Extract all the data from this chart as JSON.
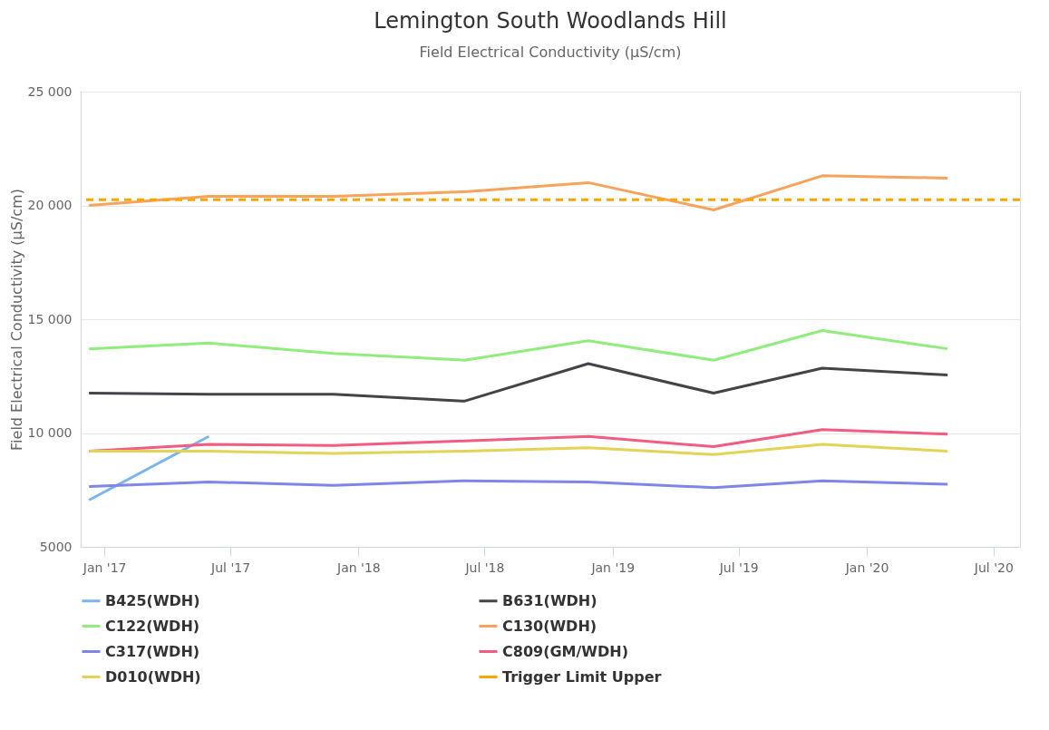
{
  "chart_data": {
    "type": "line",
    "title": "Lemington South Woodlands Hill",
    "subtitle": "Field Electrical Conductivity (µS/cm)",
    "ylabel": "Field Electrical Conductivity (µS/cm)",
    "x": [
      "2016-12-10",
      "2017-05-31",
      "2017-11-26",
      "2018-06-02",
      "2018-11-27",
      "2019-05-26",
      "2019-10-29",
      "2020-04-26"
    ],
    "series": [
      {
        "name": "B425(WDH)",
        "color": "#7cb5ec",
        "values": [
          7050,
          9850,
          null,
          null,
          null,
          null,
          null,
          null
        ]
      },
      {
        "name": "B631(WDH)",
        "color": "#434348",
        "values": [
          11750,
          11700,
          11700,
          11400,
          13050,
          11750,
          12850,
          12550
        ]
      },
      {
        "name": "C122(WDH)",
        "color": "#90ed7d",
        "values": [
          13700,
          13950,
          13500,
          13200,
          14050,
          13200,
          14500,
          13700
        ]
      },
      {
        "name": "C130(WDH)",
        "color": "#f7a35c",
        "values": [
          20000,
          20400,
          20400,
          20600,
          21000,
          19800,
          21300,
          21200
        ]
      },
      {
        "name": "C317(WDH)",
        "color": "#8085e9",
        "values": [
          7650,
          7850,
          7700,
          7900,
          7850,
          7600,
          7900,
          7750
        ]
      },
      {
        "name": "C809(GM/WDH)",
        "color": "#f15c80",
        "values": [
          9200,
          9500,
          9450,
          9650,
          9850,
          9400,
          10150,
          9950
        ]
      },
      {
        "name": "D010(WDH)",
        "color": "#e4d354",
        "values": [
          9200,
          9200,
          9100,
          9200,
          9350,
          9050,
          9500,
          9200
        ]
      }
    ],
    "ref_lines": [
      {
        "axis": "y",
        "value": 20250,
        "label": "Trigger Limit Upper",
        "color": "#ffa500",
        "line_style": "dashed"
      }
    ],
    "xlim": [
      "2016-11-28",
      "2020-08-08"
    ],
    "xticks": [
      {
        "value": "2017-01-01",
        "label": "Jan '17"
      },
      {
        "value": "2017-07-01",
        "label": "Jul '17"
      },
      {
        "value": "2018-01-01",
        "label": "Jan '18"
      },
      {
        "value": "2018-07-01",
        "label": "Jul '18"
      },
      {
        "value": "2019-01-01",
        "label": "Jan '19"
      },
      {
        "value": "2019-07-01",
        "label": "Jul '19"
      },
      {
        "value": "2020-01-01",
        "label": "Jan '20"
      },
      {
        "value": "2020-07-01",
        "label": "Jul '20"
      }
    ],
    "ylim": [
      5000,
      25000
    ],
    "yticks": [
      {
        "value": 5000,
        "label": "5000"
      },
      {
        "value": 10000,
        "label": "10 000"
      },
      {
        "value": 15000,
        "label": "15 000"
      },
      {
        "value": 20000,
        "label": "20 000"
      },
      {
        "value": 25000,
        "label": "25 000"
      }
    ],
    "grid": "y",
    "legend": "bottom",
    "marker": "none",
    "line_style": "solid"
  }
}
